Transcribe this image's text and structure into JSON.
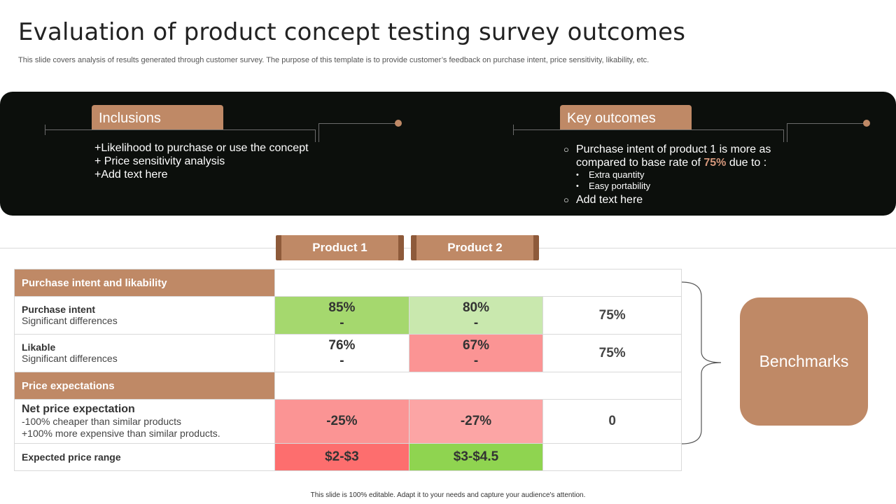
{
  "header": {
    "title": "Evaluation of product concept testing survey outcomes",
    "subtitle": "This slide covers analysis of results generated through customer survey. The purpose of this template is to provide customer’s feedback on purchase intent, price sensitivity, likability, etc."
  },
  "inclusions": {
    "label": "Inclusions",
    "items": [
      "+Likelihood to purchase or use the concept",
      "+ Price sensitivity analysis",
      "+Add text here"
    ]
  },
  "key_outcomes": {
    "label": "Key outcomes",
    "item1_text": "Purchase intent of product 1 is more as compared to base rate of",
    "item1_value": "75%",
    "item1_suffix": "due to :",
    "sub_items": [
      "Extra quantity",
      "Easy portability"
    ],
    "item2_text": "Add text here"
  },
  "products": {
    "product1": "Product 1",
    "product2": "Product 2"
  },
  "table": {
    "section1": "Purchase intent and likability",
    "rows": [
      {
        "label": "Purchase intent",
        "sub": "Significant differences",
        "p1": "85%",
        "p1_sub": "-",
        "p2": "80%",
        "p2_sub": "-",
        "bench": "75%"
      },
      {
        "label": "Likable",
        "sub": "Significant differences",
        "p1": "76%",
        "p1_sub": "-",
        "p2": "67%",
        "p2_sub": "-",
        "bench": "75%"
      }
    ],
    "section2": "Price expectations",
    "net_price": {
      "label": "Net price expectation",
      "sub1": "-100% cheaper than similar products",
      "sub2": "+100% more expensive than similar products.",
      "p1": "-25%",
      "p2": "-27%",
      "bench": "0"
    },
    "price_range": {
      "label": "Expected price range",
      "p1": "$2-$3",
      "p2": "$3-$4.5",
      "bench": ""
    }
  },
  "benchmarks_label": "Benchmarks",
  "footer": "This slide is 100% editable. Adapt it to your needs and capture your audience's attention.",
  "colors": {
    "accent": "#bf8966",
    "panel": "#0c0f0c",
    "green_strong": "#a5d86e",
    "green_light": "#c9e8ae",
    "red": "#fb9494",
    "red_strong": "#fd6e6e"
  }
}
